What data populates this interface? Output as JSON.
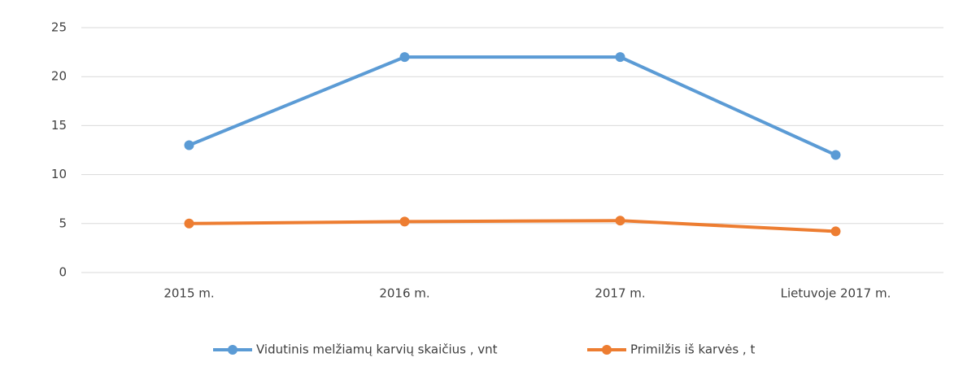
{
  "chart_data": {
    "type": "line",
    "categories": [
      "2015 m.",
      "2016 m.",
      "2017 m.",
      "Lietuvoje 2017 m."
    ],
    "series": [
      {
        "name": "Vidutinis melžiamų karvių skaičius , vnt",
        "color": "#5b9bd5",
        "values": [
          13,
          22,
          22,
          12
        ]
      },
      {
        "name": "Primilžis iš karvės , t",
        "color": "#ed7d31",
        "values": [
          5,
          5.2,
          5.3,
          4.2
        ]
      }
    ],
    "ylim": [
      0,
      25
    ],
    "yticks": [
      0,
      5,
      10,
      15,
      20,
      25
    ],
    "grid": true,
    "legend": "bottom"
  }
}
